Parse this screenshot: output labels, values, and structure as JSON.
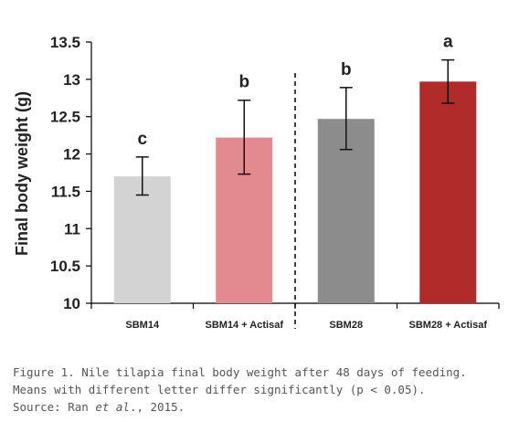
{
  "chart_data": {
    "type": "bar",
    "ylabel": "Final body weight (g)",
    "xlabel": "",
    "ylim": [
      10,
      13.5
    ],
    "yticks": [
      10,
      10.5,
      11,
      11.5,
      12,
      12.5,
      13,
      13.5
    ],
    "ytick_labels": [
      "10",
      "10.5",
      "11",
      "11.5",
      "12",
      "12.5",
      "13",
      "13.5"
    ],
    "categories": [
      "SBM14",
      "SBM14 + Actisaf",
      "SBM28",
      "SBM28 + Actisaf"
    ],
    "values": [
      11.7,
      12.22,
      12.47,
      12.97
    ],
    "error_low": [
      11.45,
      11.73,
      12.06,
      12.68
    ],
    "error_high": [
      11.96,
      12.72,
      12.89,
      13.26
    ],
    "significance_letters": [
      "c",
      "b",
      "b",
      "a"
    ],
    "colors": [
      "#d3d3d3",
      "#e28a8f",
      "#8c8c8c",
      "#b22b2b"
    ],
    "divider_after_category": 1,
    "grid": false,
    "legend": "none"
  },
  "caption": {
    "line1": "Figure 1. Nile tilapia final body weight after 48 days of feeding.",
    "line2": "Means with different letter differ significantly (p < 0.05).",
    "line3_prefix": "Source: Ran ",
    "line3_italic": "et al",
    "line3_suffix": "., 2015."
  }
}
